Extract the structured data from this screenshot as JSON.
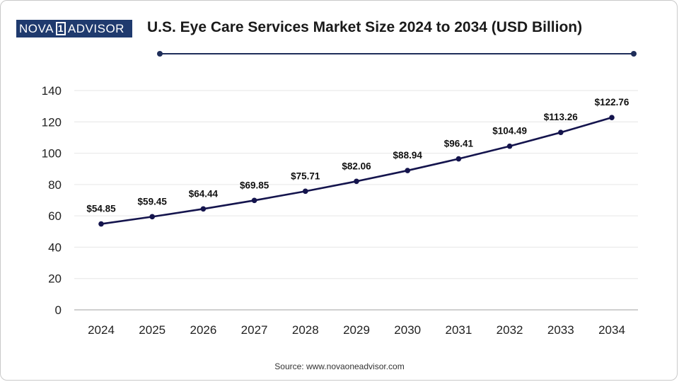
{
  "logo": {
    "left_text": "NOVA",
    "mark_text": "1",
    "right_text": "ADVISOR"
  },
  "header": {
    "title": "U.S. Eye Care Services Market Size 2024 to 2034 (USD Billion)"
  },
  "footer": {
    "source": "Source: www.novaoneadvisor.com"
  },
  "colors": {
    "line": "#14144d",
    "grid": "#e6e6e6",
    "axis": "#b5b5b5",
    "brand": "#1f3a6e"
  },
  "chart_data": {
    "type": "line",
    "title": "U.S. Eye Care Services Market Size 2024 to 2034 (USD Billion)",
    "xlabel": "",
    "ylabel": "",
    "categories": [
      "2024",
      "2025",
      "2026",
      "2027",
      "2028",
      "2029",
      "2030",
      "2031",
      "2032",
      "2033",
      "2034"
    ],
    "series": [
      {
        "name": "Market Size",
        "values": [
          54.85,
          59.45,
          64.44,
          69.85,
          75.71,
          82.06,
          88.94,
          96.41,
          104.49,
          113.26,
          122.76
        ],
        "labels": [
          "$54.85",
          "$59.45",
          "$64.44",
          "$69.85",
          "$75.71",
          "$82.06",
          "$88.94",
          "$96.41",
          "$104.49",
          "$113.26",
          "$122.76"
        ]
      }
    ],
    "ylim": [
      0,
      140
    ],
    "yticks": [
      0,
      20,
      40,
      60,
      80,
      100,
      120,
      140
    ],
    "grid": true,
    "legend": "none"
  }
}
